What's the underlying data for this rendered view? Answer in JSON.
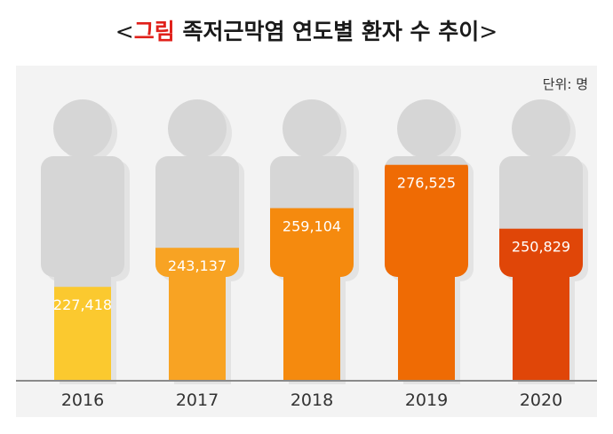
{
  "header": {
    "title_open": "<",
    "title_accent": "그림",
    "title_main": " 족저근막염 연도별 환자 수 추이",
    "title_close": ">",
    "unit": "단위: 명"
  },
  "chart_data": {
    "type": "bar",
    "title": "족저근막염 연도별 환자 수 추이",
    "categories": [
      "2016",
      "2017",
      "2018",
      "2019",
      "2020"
    ],
    "values": [
      227418,
      243137,
      259104,
      276525,
      250829
    ],
    "value_labels": [
      "227,418",
      "243,137",
      "259,104",
      "276,525",
      "250,829"
    ],
    "ylabel": "단위: 명",
    "ylim": [
      190000,
      280000
    ],
    "colors": [
      "#fbc92f",
      "#f8a323",
      "#f58a0e",
      "#ef6b04",
      "#e04608"
    ],
    "icon": "person-silhouette-icon"
  }
}
